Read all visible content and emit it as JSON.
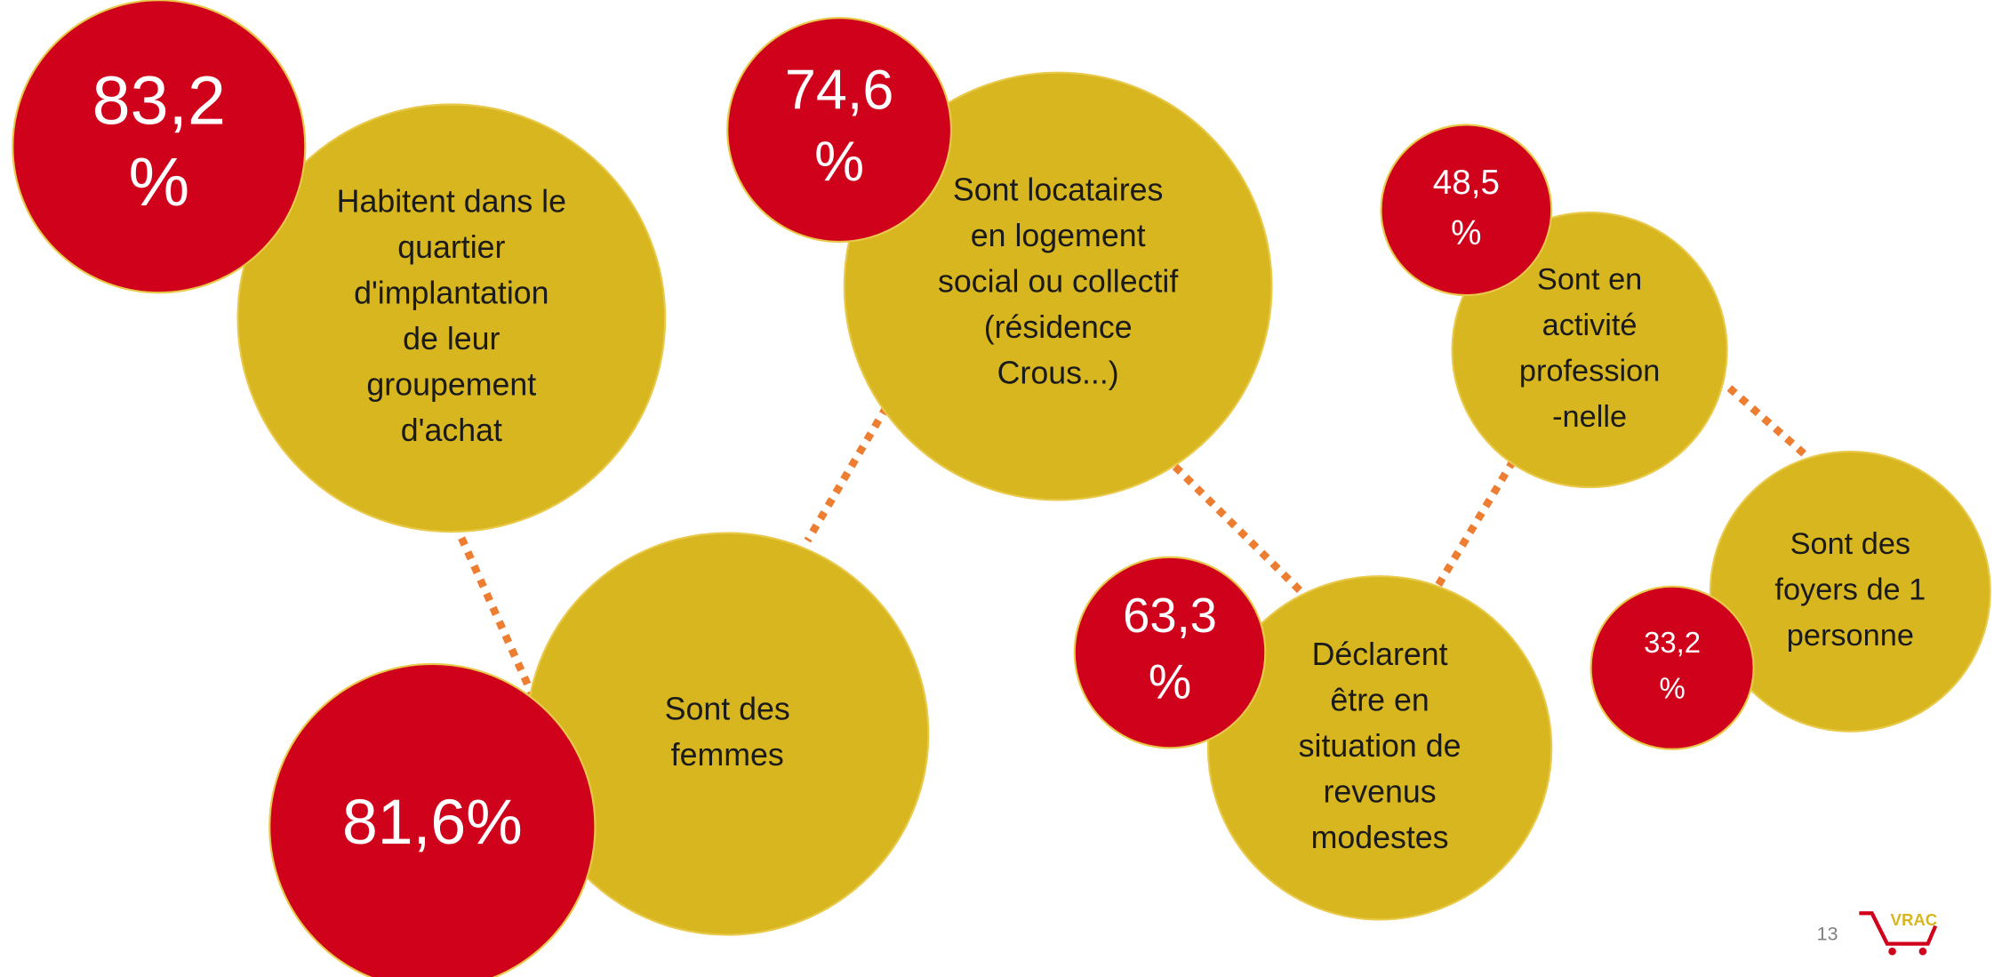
{
  "bubbles": [
    {
      "value_lines": [
        "83,2",
        "%"
      ],
      "label_lines": [
        "Habitent dans le",
        "quartier",
        "d'implantation",
        "de leur",
        "groupement",
        "d'achat"
      ]
    },
    {
      "value_lines": [
        "74,6",
        "%"
      ],
      "label_lines": [
        "Sont locataires",
        "en logement",
        "social ou collectif",
        "(résidence",
        "Crous...)"
      ]
    },
    {
      "value_lines": [
        "81,6%"
      ],
      "label_lines": [
        "Sont des",
        "femmes"
      ]
    },
    {
      "value_lines": [
        "63,3",
        "%"
      ],
      "label_lines": [
        "Déclarent",
        "être en",
        "situation de",
        "revenus",
        "modestes"
      ]
    },
    {
      "value_lines": [
        "48,5",
        "%"
      ],
      "label_lines": [
        "Sont en",
        "activité",
        "profession",
        "-nelle"
      ]
    },
    {
      "value_lines": [
        "33,2",
        "%"
      ],
      "label_lines": [
        "Sont des",
        "foyers de 1",
        "personne"
      ]
    }
  ],
  "page_number": "13",
  "logo": "VRAC"
}
